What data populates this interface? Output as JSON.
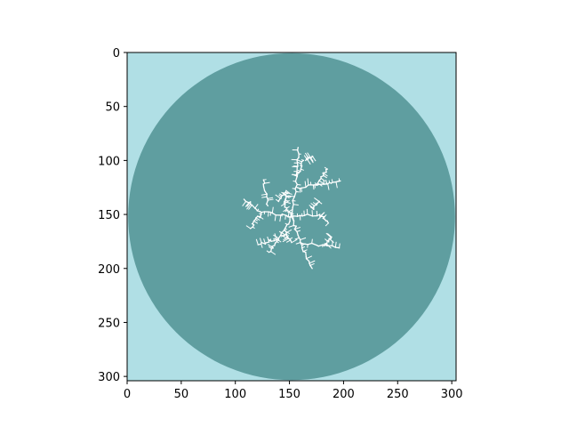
{
  "chart_data": {
    "type": "heatmap",
    "title": "",
    "xlabel": "",
    "ylabel": "",
    "xlim": [
      0,
      304
    ],
    "ylim": [
      304,
      0
    ],
    "x_ticks": [
      0,
      50,
      100,
      150,
      200,
      250,
      300
    ],
    "y_ticks": [
      0,
      50,
      100,
      150,
      200,
      250,
      300
    ],
    "x_tick_labels": [
      "0",
      "50",
      "100",
      "150",
      "200",
      "250",
      "300"
    ],
    "y_tick_labels": [
      "0",
      "50",
      "100",
      "150",
      "200",
      "250",
      "300"
    ],
    "grid": false,
    "legend": "none",
    "background_color": "#b0dfe5",
    "disk": {
      "center": [
        152,
        152
      ],
      "radius": 151,
      "color": "#5f9ea0"
    },
    "cluster_color": "#ffffff",
    "cluster_center": [
      152,
      152
    ],
    "cluster_branches": [
      {
        "from": [
          152,
          152
        ],
        "to": [
          157,
          115
        ]
      },
      {
        "from": [
          157,
          115
        ],
        "to": [
          158,
          88
        ]
      },
      {
        "from": [
          157,
          115
        ],
        "to": [
          163,
          100
        ]
      },
      {
        "from": [
          165,
          100
        ],
        "to": [
          171,
          96
        ]
      },
      {
        "from": [
          157,
          125
        ],
        "to": [
          182,
          122
        ]
      },
      {
        "from": [
          182,
          122
        ],
        "to": [
          197,
          119
        ]
      },
      {
        "from": [
          175,
          123
        ],
        "to": [
          185,
          108
        ]
      },
      {
        "from": [
          152,
          152
        ],
        "to": [
          178,
          150
        ]
      },
      {
        "from": [
          178,
          150
        ],
        "to": [
          186,
          158
        ]
      },
      {
        "from": [
          172,
          145
        ],
        "to": [
          177,
          138
        ]
      },
      {
        "from": [
          152,
          152
        ],
        "to": [
          124,
          148
        ]
      },
      {
        "from": [
          124,
          148
        ],
        "to": [
          108,
          136
        ]
      },
      {
        "from": [
          124,
          148
        ],
        "to": [
          114,
          163
        ]
      },
      {
        "from": [
          130,
          142
        ],
        "to": [
          126,
          118
        ]
      },
      {
        "from": [
          140,
          138
        ],
        "to": [
          147,
          128
        ]
      },
      {
        "from": [
          152,
          152
        ],
        "to": [
          160,
          176
        ]
      },
      {
        "from": [
          160,
          176
        ],
        "to": [
          196,
          181
        ]
      },
      {
        "from": [
          160,
          176
        ],
        "to": [
          171,
          200
        ]
      },
      {
        "from": [
          182,
          179
        ],
        "to": [
          189,
          171
        ]
      },
      {
        "from": [
          152,
          152
        ],
        "to": [
          140,
          172
        ]
      },
      {
        "from": [
          140,
          172
        ],
        "to": [
          121,
          178
        ]
      },
      {
        "from": [
          140,
          172
        ],
        "to": [
          131,
          185
        ]
      },
      {
        "from": [
          146,
          165
        ],
        "to": [
          152,
          176
        ]
      },
      {
        "from": [
          152,
          152
        ],
        "to": [
          145,
          140
        ]
      },
      {
        "from": [
          145,
          140
        ],
        "to": [
          148,
          130
        ]
      }
    ]
  }
}
